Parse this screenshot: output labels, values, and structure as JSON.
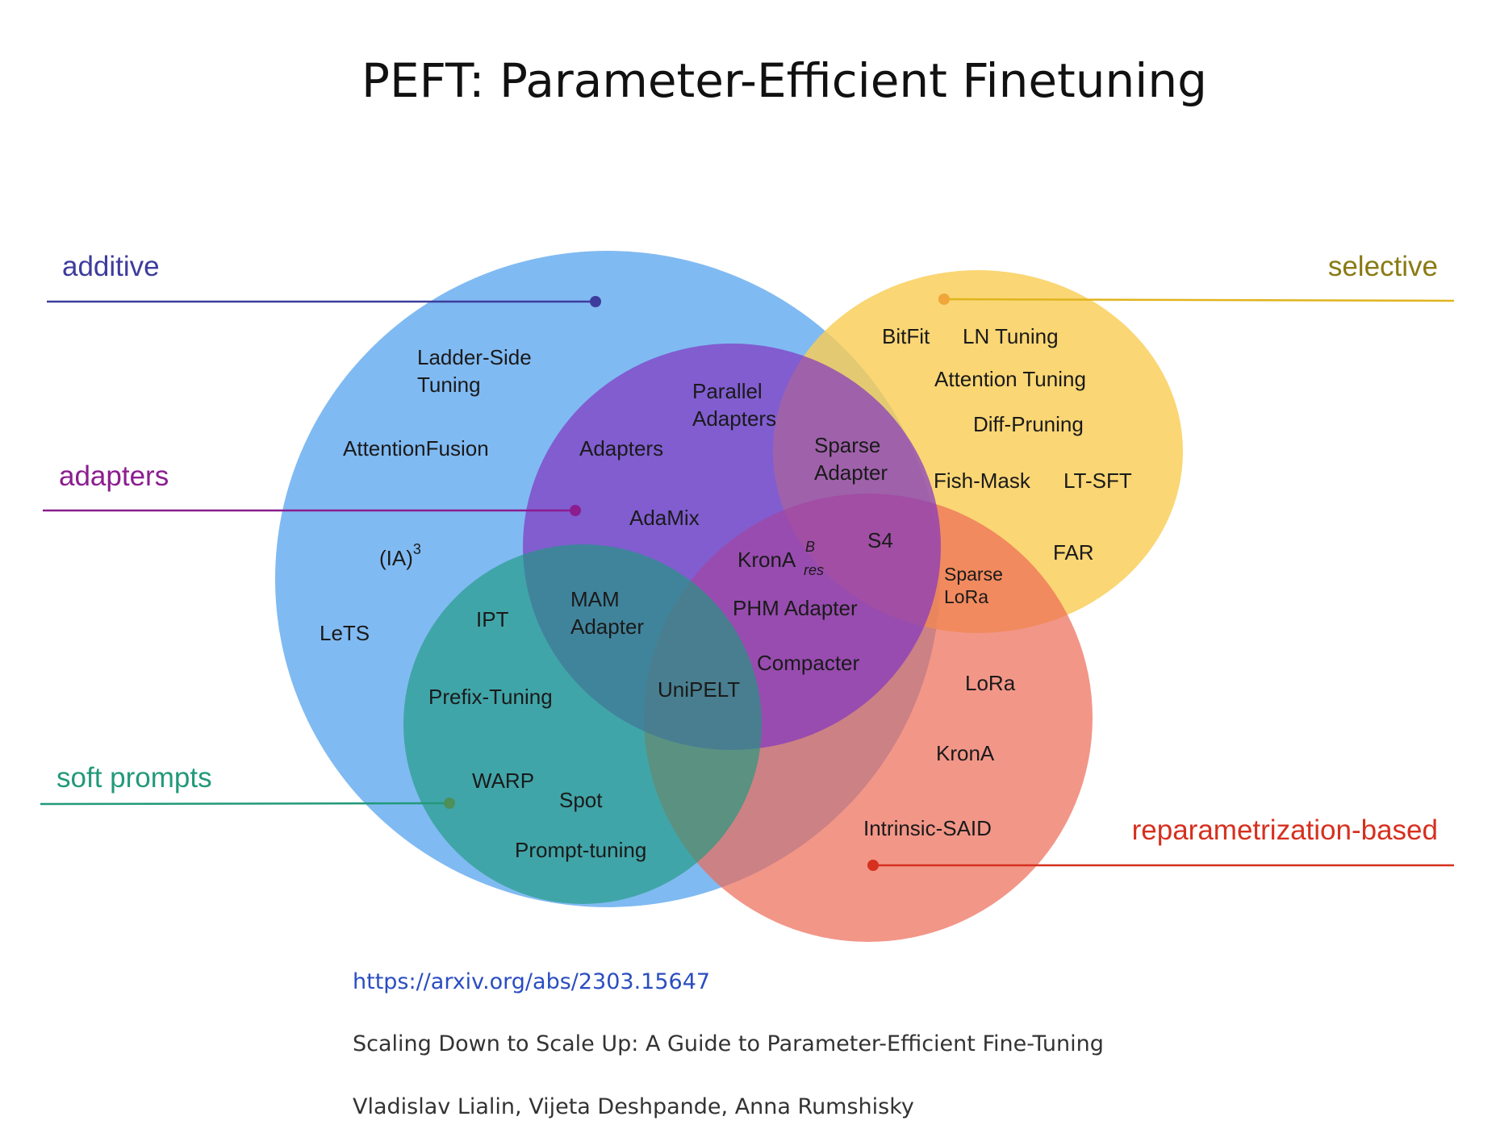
{
  "title": "PEFT: Parameter-Efficient Finetuning",
  "categories": {
    "additive": {
      "label": "additive",
      "color": "#3d3c9c"
    },
    "selective": {
      "label": "selective",
      "color": "#8a7a14"
    },
    "adapters": {
      "label": "adapters",
      "color": "#8b1d8f"
    },
    "soft_prompts": {
      "label": "soft prompts",
      "color": "#22997a"
    },
    "reparametrization": {
      "label": "reparametrization-based",
      "color": "#d6301f"
    }
  },
  "region_colors": {
    "additive": "#6aaef0",
    "selective": "#f9cd55",
    "adapters": "#8236c2",
    "soft_prompts": "#219c86",
    "reparametrization": "#ec6a55"
  },
  "methods": {
    "ladder_side_1": "Ladder-Side",
    "ladder_side_2": "Tuning",
    "attention_fusion": "AttentionFusion",
    "ia3": "(IA)",
    "ia3_sup": "3",
    "lets": "LeTS",
    "ipt": "IPT",
    "prefix_tuning": "Prefix-Tuning",
    "warp": "WARP",
    "spot": "Spot",
    "prompt_tuning": "Prompt-tuning",
    "mam_1": "MAM",
    "mam_2": "Adapter",
    "unipelt": "UniPELT",
    "adapters": "Adapters",
    "parallel_1": "Parallel",
    "parallel_2": "Adapters",
    "adamix": "AdaMix",
    "krona_res": "KronA",
    "krona_res_sup": "B",
    "krona_res_sub": "res",
    "phm_adapter": "PHM Adapter",
    "compacter": "Compacter",
    "sparse_adapter_1": "Sparse",
    "sparse_adapter_2": "Adapter",
    "s4": "S4",
    "bitfit": "BitFit",
    "ln_tuning": "LN Tuning",
    "attention_tuning": "Attention Tuning",
    "diff_pruning": "Diff-Pruning",
    "fish_mask": "Fish-Mask",
    "lt_sft": "LT-SFT",
    "far": "FAR",
    "sparse_lora_1": "Sparse",
    "sparse_lora_2": "LoRa",
    "lora": "LoRa",
    "krona": "KronA",
    "intrinsic_said": "Intrinsic-SAID"
  },
  "footer": {
    "link": "https://arxiv.org/abs/2303.15647",
    "paper_title": "Scaling Down to Scale Up: A Guide to Parameter-Efficient Fine-Tuning",
    "authors": "Vladislav Lialin, Vijeta Deshpande, Anna Rumshisky"
  }
}
